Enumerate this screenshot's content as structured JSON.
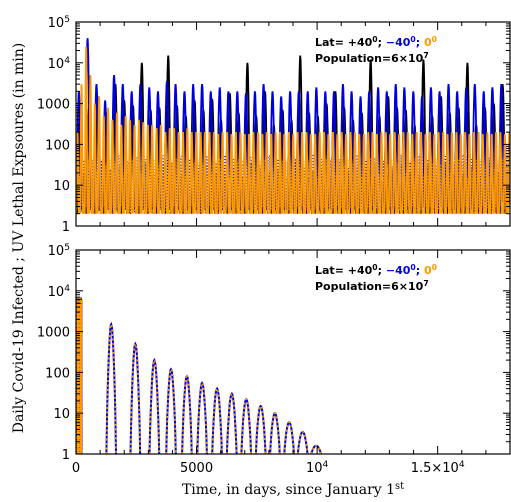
{
  "chart_data": {
    "type": "line",
    "ylabel": "Daily Covid-19 Infected ; UV Lethal Expsoures (in min)",
    "xlabel": {
      "main": "Time, in days, since January 1",
      "sup": "st"
    },
    "xlim": [
      0,
      18000
    ],
    "x_ticks": [
      {
        "value": 0,
        "label": "0"
      },
      {
        "value": 5000,
        "label": "5000"
      },
      {
        "value": 10000,
        "label": "10",
        "sup": "4"
      },
      {
        "value": 15000,
        "label": "1.5×10",
        "sup": "4"
      }
    ],
    "y_scale": "log",
    "ylim": [
      1,
      100000
    ],
    "y_ticks": [
      {
        "value": 1,
        "label": "1"
      },
      {
        "value": 10,
        "label": "10"
      },
      {
        "value": 100,
        "label": "100"
      },
      {
        "value": 1000,
        "label": "1000"
      },
      {
        "value": 10000,
        "label": "10",
        "sup": "4"
      },
      {
        "value": 100000,
        "label": "10",
        "sup": "5"
      }
    ],
    "panels": [
      {
        "name": "uv-exposures",
        "legend": {
          "prefix": "Lat=",
          "items": [
            {
              "text": "+40",
              "sup": "0",
              "sep": ";",
              "color": "#000000"
            },
            {
              "text": "−40",
              "sup": "0",
              "sep": ";",
              "color": "#0000dd"
            },
            {
              "text": "0",
              "sup": "0",
              "sep": "",
              "color": "#ff9900"
            }
          ],
          "population": {
            "text": "Population=6×10",
            "sup": "7"
          }
        },
        "series": [
          {
            "color": "#000000",
            "period": 365,
            "peak_x": [
              170,
              540,
              905,
              1270,
              1635,
              2000,
              2365,
              2730,
              3095,
              3460,
              3825,
              4190,
              4555,
              4920,
              5285,
              5650,
              6015,
              6380,
              6745,
              7110,
              7475,
              7840,
              8205,
              8570,
              8935,
              9300,
              9665,
              10030,
              10395,
              10760,
              11125,
              11490,
              11855,
              12220,
              12585,
              12950,
              13315,
              13680,
              14045,
              14410,
              14775,
              15140,
              15505,
              15870,
              16235,
              16600,
              16965,
              17330,
              17695
            ],
            "peak_y": [
              500,
              800,
              1500,
              600,
              3000,
              1200,
              900,
              10000,
              700,
              800,
              15000,
              900,
              500,
              1200,
              700,
              1300,
              400,
              1800,
              600,
              10000,
              500,
              2000,
              300,
              700,
              400,
              15000,
              600,
              500,
              1000,
              2000,
              800,
              400,
              600,
              12000,
              500,
              1500,
              800,
              700,
              300,
              12000,
              500,
              1500,
              600,
              800,
              10000,
              300,
              800,
              1000,
              3000
            ],
            "floor": 2
          },
          {
            "color": "#0000dd",
            "period": 365,
            "peak_x": [
              120,
              480,
              850,
              1210,
              1580,
              1940,
              2310,
              2670,
              3040,
              3400,
              3770,
              4130,
              4500,
              4860,
              5230,
              5590,
              5960,
              6320,
              6690,
              7050,
              7420,
              7780,
              8150,
              8510,
              8880,
              9240,
              9610,
              9970,
              10340,
              10700,
              11070,
              11430,
              11800,
              12160,
              12530,
              12890,
              13260,
              13620,
              13990,
              14350,
              14720,
              15080,
              15450,
              15810,
              16180,
              16540,
              16910,
              17270,
              17640
            ],
            "peak_y": [
              2000,
              40000,
              3000,
              1200,
              5000,
              3000,
              2000,
              3000,
              2500,
              2000,
              3500,
              3000,
              2000,
              3000,
              3000,
              2000,
              2500,
              2000,
              2000,
              1800,
              2000,
              3000,
              2000,
              1500,
              2000,
              2000,
              2000,
              2500,
              2000,
              2000,
              3000,
              2000,
              1500,
              2000,
              2500,
              2000,
              3000,
              2500,
              2000,
              1500,
              2500,
              2000,
              3000,
              2000,
              2500,
              3000,
              2000,
              2500,
              3000
            ],
            "floor": 2.5
          },
          {
            "color": "#ff9900",
            "period": 182,
            "peak_x": [
              60,
              230,
              420,
              600,
              780,
              960,
              1150,
              1330,
              1510,
              1700,
              1880,
              2060,
              2240,
              2430,
              2610,
              2790,
              2980,
              3160,
              3340,
              3520,
              3710,
              3890,
              4070,
              4260,
              4440,
              4620,
              4800,
              4990,
              5170,
              5350,
              5540,
              5720,
              5900,
              6080,
              6270,
              6450,
              6630,
              6820,
              7000,
              7180,
              7360,
              7550,
              7730,
              7910,
              8100,
              8280,
              8460,
              8640,
              8830,
              9010,
              9190,
              9380,
              9560,
              9740,
              9920,
              10110,
              10290,
              10470,
              10660,
              10840,
              11020,
              11200,
              11390,
              11570,
              11750,
              11940,
              12120,
              12300,
              12480,
              12670,
              12850,
              13030,
              13220,
              13400,
              13580,
              13760,
              13950,
              14130,
              14310,
              14500,
              14680,
              14860,
              15040,
              15230,
              15410,
              15590,
              15780,
              15960,
              16140,
              16320,
              16510,
              16690,
              16870,
              17060,
              17240,
              17420,
              17600,
              17790,
              17970
            ],
            "peak_y": [
              200,
              3000,
              25000,
              5000,
              1000,
              1500,
              500,
              800,
              400,
              600,
              300,
              500,
              400,
              300,
              400,
              350,
              300,
              300,
              250,
              300,
              200,
              250,
              250,
              200,
              200,
              250,
              200,
              200,
              200,
              200,
              200,
              200,
              180,
              200,
              200,
              180,
              200,
              200,
              180,
              180,
              200,
              200,
              180,
              200,
              180,
              200,
              200,
              180,
              200,
              180,
              200,
              200,
              200,
              180,
              180,
              200,
              200,
              180,
              200,
              180,
              200,
              180,
              200,
              200,
              180,
              180,
              200,
              200,
              180,
              200,
              200,
              180,
              200,
              180,
              200,
              200,
              180,
              200,
              200,
              180,
              200,
              180,
              200,
              200,
              180,
              200,
              200,
              180,
              200,
              180,
              200,
              200,
              180,
              200,
              180,
              200,
              200,
              180,
              200
            ],
            "floor": 2
          }
        ]
      },
      {
        "name": "daily-infected",
        "legend": {
          "prefix": "Lat=",
          "items": [
            {
              "text": "+40",
              "sup": "0",
              "sep": ";",
              "color": "#000000"
            },
            {
              "text": "−40",
              "sup": "0",
              "sep": ";",
              "color": "#0000dd"
            },
            {
              "text": "0",
              "sup": "0",
              "sep": "",
              "color": "#ff9900"
            }
          ],
          "population": {
            "text": "Population=6×10",
            "sup": "7"
          }
        },
        "series": [
          {
            "color": "#0000dd",
            "period": 365,
            "first_peak": {
              "x": 120,
              "y": 7000
            },
            "peak_x": [
              1460,
              2460,
              3250,
              3940,
              4600,
              5230,
              5850,
              6460,
              7060,
              7660,
              8250,
              8840,
              9400,
              9960
            ],
            "peak_y": [
              1500,
              500,
              200,
              120,
              80,
              55,
              40,
              30,
              22,
              15,
              10,
              6,
              3.5,
              1.6
            ],
            "half_width": 200
          }
        ]
      }
    ]
  }
}
